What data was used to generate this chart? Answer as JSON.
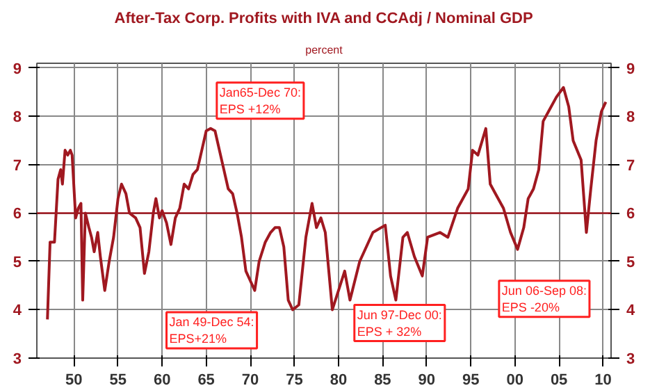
{
  "chart_data": {
    "type": "line",
    "title": "After-Tax Corp. Profits with IVA and CCAdj / Nominal GDP",
    "subtitle": "percent",
    "x": [
      1947.0,
      1947.3,
      1947.8,
      1948.2,
      1948.5,
      1948.7,
      1949.0,
      1949.3,
      1949.6,
      1949.8,
      1950.2,
      1950.5,
      1950.8,
      1951.0,
      1951.3,
      1951.7,
      1952.0,
      1952.3,
      1952.7,
      1953.0,
      1953.5,
      1954.0,
      1954.5,
      1955.0,
      1955.4,
      1955.9,
      1956.3,
      1957.0,
      1957.5,
      1958.0,
      1958.5,
      1959.0,
      1959.3,
      1959.7,
      1960.0,
      1960.5,
      1961.0,
      1961.5,
      1962.0,
      1962.5,
      1963.0,
      1963.5,
      1964.0,
      1964.5,
      1965.0,
      1965.5,
      1966.0,
      1966.5,
      1967.0,
      1967.5,
      1968.0,
      1968.5,
      1969.0,
      1969.5,
      1970.0,
      1970.5,
      1971.0,
      1971.7,
      1972.3,
      1972.8,
      1973.3,
      1973.8,
      1974.3,
      1974.8,
      1975.5,
      1976.3,
      1977.0,
      1977.5,
      1978.0,
      1978.5,
      1979.3,
      1980.7,
      1981.3,
      1982.4,
      1983.9,
      1985.3,
      1985.9,
      1986.5,
      1987.3,
      1987.8,
      1988.6,
      1989.5,
      1990.1,
      1991.5,
      1992.4,
      1993.5,
      1994.7,
      1995.2,
      1995.8,
      1996.7,
      1997.2,
      1997.8,
      1998.7,
      1999.5,
      2000.3,
      2001.0,
      2001.5,
      2002.1,
      2002.7,
      2003.2,
      2003.8,
      2004.7,
      2005.5,
      2006.1,
      2006.6,
      2007.5,
      2008.1,
      2008.6,
      2009.2,
      2009.8,
      2010.3
    ],
    "series": [
      {
        "color": "#a01820",
        "values": [
          3.8,
          5.4,
          5.4,
          6.7,
          6.9,
          6.6,
          7.3,
          7.2,
          7.3,
          7.2,
          5.9,
          6.1,
          6.2,
          4.2,
          6.0,
          5.7,
          5.5,
          5.2,
          5.6,
          5.1,
          4.4,
          5.0,
          5.5,
          6.3,
          6.6,
          6.4,
          6.0,
          5.9,
          5.7,
          4.75,
          5.2,
          6.0,
          6.3,
          5.9,
          6.05,
          5.8,
          5.35,
          5.9,
          6.1,
          6.6,
          6.5,
          6.8,
          6.9,
          7.3,
          7.7,
          7.75,
          7.7,
          7.3,
          6.9,
          6.5,
          6.4,
          6.0,
          5.5,
          4.8,
          4.6,
          4.4,
          5.0,
          5.4,
          5.6,
          5.7,
          5.7,
          5.3,
          4.2,
          4.0,
          4.1,
          5.5,
          6.2,
          5.7,
          5.9,
          5.6,
          4.0,
          4.8,
          4.2,
          5.0,
          5.6,
          5.75,
          4.7,
          4.2,
          5.5,
          5.6,
          5.1,
          4.7,
          5.5,
          5.6,
          5.5,
          6.1,
          6.5,
          7.3,
          7.2,
          7.75,
          6.6,
          6.4,
          6.1,
          5.6,
          5.25,
          5.7,
          6.3,
          6.5,
          6.9,
          7.9,
          8.1,
          8.4,
          8.6,
          8.2,
          7.5,
          7.1,
          5.6,
          6.5,
          7.5,
          8.1,
          8.3
        ]
      }
    ],
    "xlim": [
      1945.8,
      2010.9
    ],
    "xticks": [
      {
        "value": 1950,
        "label": "50"
      },
      {
        "value": 1955,
        "label": "55"
      },
      {
        "value": 1960,
        "label": "60"
      },
      {
        "value": 1965,
        "label": "65"
      },
      {
        "value": 1970,
        "label": "70"
      },
      {
        "value": 1975,
        "label": "75"
      },
      {
        "value": 1980,
        "label": "80"
      },
      {
        "value": 1985,
        "label": "85"
      },
      {
        "value": 1990,
        "label": "90"
      },
      {
        "value": 1995,
        "label": "95"
      },
      {
        "value": 2000,
        "label": "00"
      },
      {
        "value": 2005,
        "label": "05"
      },
      {
        "value": 2010,
        "label": "10"
      }
    ],
    "ylim": [
      3,
      9.1
    ],
    "yticks": [
      3,
      4,
      5,
      6,
      7,
      8,
      9
    ],
    "y2lim": [
      3,
      9.1
    ],
    "y2ticks": [
      3,
      4,
      5,
      6,
      7,
      8,
      9
    ],
    "ref_lines": [
      {
        "axis": "y",
        "value": 6,
        "color": "#a01820"
      }
    ],
    "grid": true,
    "annotations": [
      "Jan65-Dec 70:\nEPS +12%",
      "Jan 49-Dec 54:\nEPS+21%",
      "Jun 97-Dec 00:\nEPS + 32%",
      "Jun 06-Sep 08:\nEPS -20%"
    ]
  }
}
